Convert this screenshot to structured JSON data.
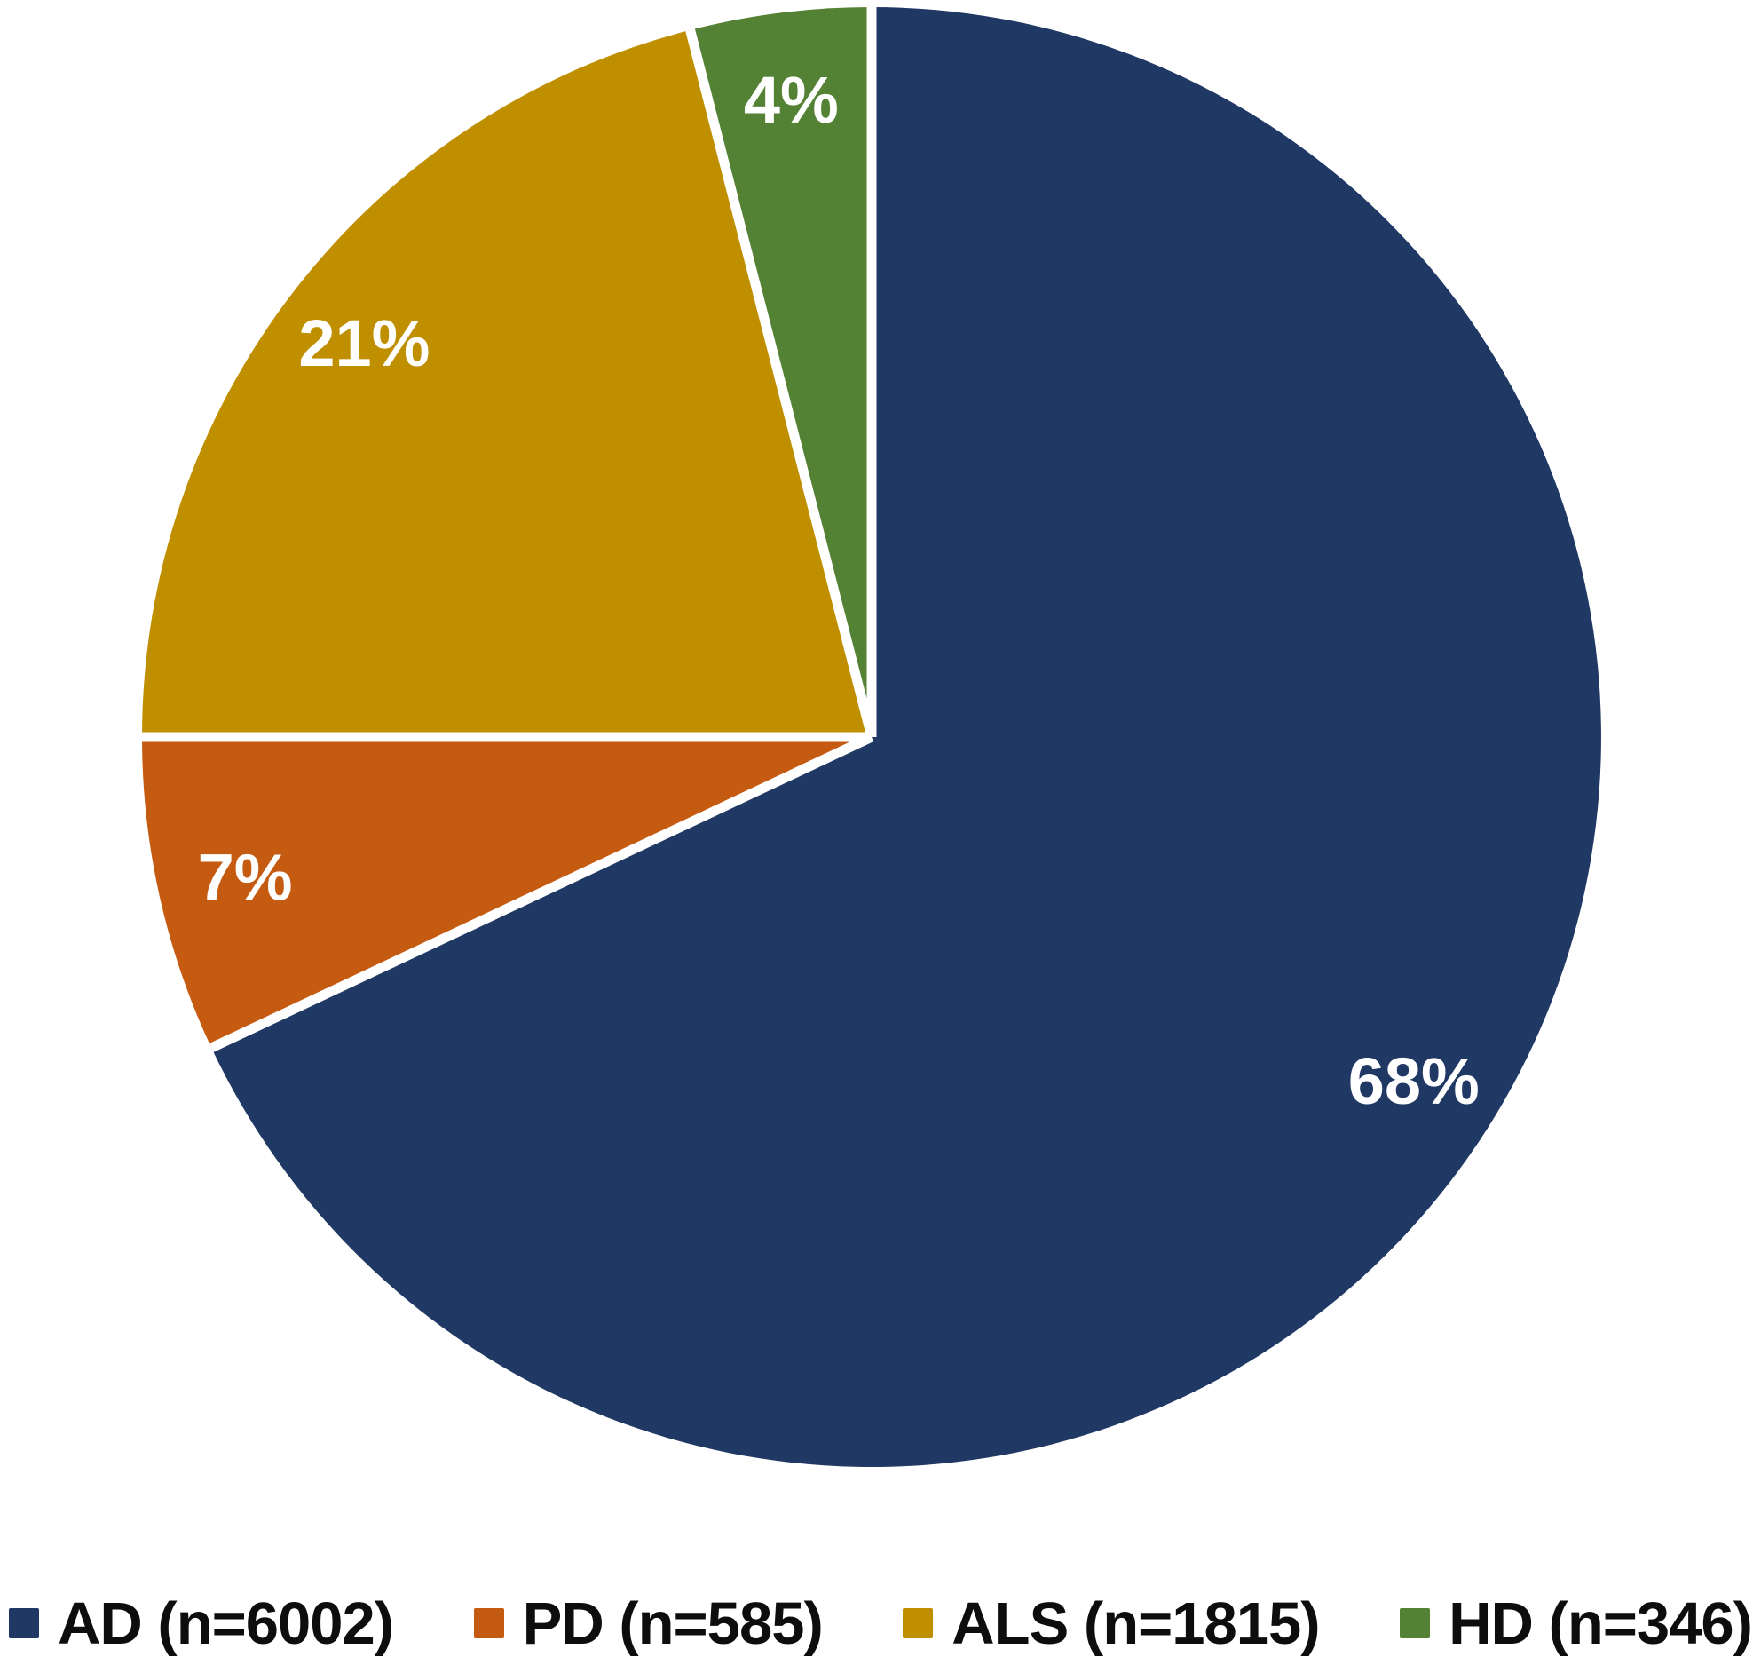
{
  "chart_data": {
    "type": "pie",
    "title": "",
    "categories": [
      "AD",
      "PD",
      "ALS",
      "HD"
    ],
    "values": [
      6002,
      585,
      1815,
      346
    ],
    "percents": [
      68,
      7,
      21,
      4
    ],
    "percent_labels": [
      "68%",
      "7%",
      "21%",
      "4%"
    ],
    "colors": [
      "#203864",
      "#C55A11",
      "#BF8F00",
      "#548235"
    ],
    "label_color": "#FFFFFF",
    "separator_color": "#FFFFFF",
    "start_angle_deg": 0,
    "direction": "clockwise",
    "grid": false,
    "legend_position": "bottom"
  },
  "legend": {
    "items": [
      {
        "id": "ad",
        "label": "AD (n=6002)",
        "color": "#203864"
      },
      {
        "id": "pd",
        "label": "PD (n=585)",
        "color": "#C55A11"
      },
      {
        "id": "als",
        "label": "ALS (n=1815)",
        "color": "#BF8F00"
      },
      {
        "id": "hd",
        "label": "HD (n=346)",
        "color": "#548235"
      }
    ]
  }
}
